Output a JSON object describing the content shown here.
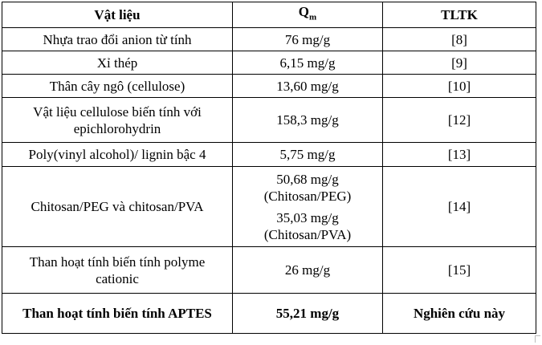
{
  "table": {
    "headers": {
      "material": "Vật liệu",
      "q": "Q",
      "q_sub": "m",
      "ref": "TLTK"
    },
    "rows": [
      {
        "material": "Nhựa trao đổi anion từ tính",
        "q": "76 mg/g",
        "ref": "[8]"
      },
      {
        "material": "Xỉ thép",
        "q": "6,15 mg/g",
        "ref": "[9]"
      },
      {
        "material": "Thân cây ngô (cellulose)",
        "q": "13,60 mg/g",
        "ref": "[10]"
      },
      {
        "material": "Vật liệu cellulose biến tính với epichlorohydrin",
        "q": "158,3 mg/g",
        "ref": "[12]"
      },
      {
        "material": "Poly(vinyl alcohol)/ lignin bậc 4",
        "q": "5,75 mg/g",
        "ref": "[13]"
      },
      {
        "material": "Chitosan/PEG và chitosan/PVA",
        "q_lines": [
          "50,68 mg/g",
          "(Chitosan/PEG)",
          "35,03 mg/g",
          "(Chitosan/PVA)"
        ],
        "ref": "[14]"
      },
      {
        "material": "Than hoạt tính biến tính polyme cationic",
        "q": "26 mg/g",
        "ref": "[15]"
      },
      {
        "material": "Than hoạt tính biến tính APTES",
        "q": "55,21 mg/g",
        "ref": "Nghiên cứu này"
      }
    ]
  }
}
